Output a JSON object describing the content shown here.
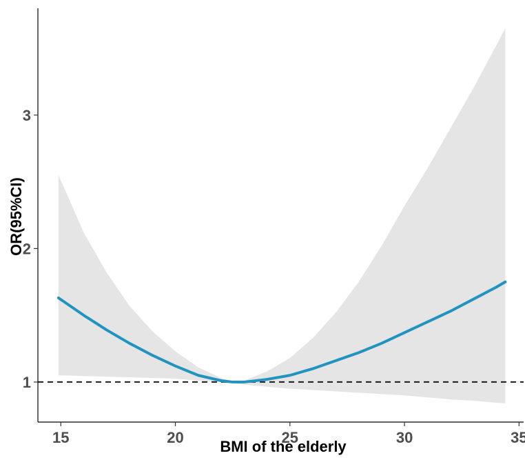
{
  "chart_data": {
    "type": "line",
    "title": "",
    "xlabel": "BMI of the elderly",
    "ylabel": "OR(95%CI)",
    "xlim": [
      14,
      35.2
    ],
    "ylim": [
      0.7,
      3.8
    ],
    "xticks": [
      15,
      20,
      25,
      30,
      35
    ],
    "yticks": [
      1,
      2,
      3
    ],
    "x_tick_labels": [
      "15",
      "20",
      "25",
      "30",
      "35"
    ],
    "y_tick_labels": [
      "1",
      "2",
      "3"
    ],
    "reference_line": {
      "y": 1,
      "style": "dashed",
      "color": "#1a1a1a"
    },
    "grid": false,
    "legend": "none",
    "series": [
      {
        "type": "line",
        "color": "#2193c0",
        "x": [
          14.9,
          16,
          17,
          18,
          19,
          20,
          21,
          22,
          22.5,
          23,
          24,
          25,
          26,
          27,
          28,
          29,
          30,
          31,
          32,
          33,
          34,
          34.4
        ],
        "values": [
          1.63,
          1.5,
          1.39,
          1.29,
          1.2,
          1.12,
          1.05,
          1.01,
          1.0,
          1.0,
          1.02,
          1.05,
          1.1,
          1.16,
          1.22,
          1.29,
          1.37,
          1.45,
          1.53,
          1.62,
          1.71,
          1.75
        ]
      },
      {
        "type": "confidence-band",
        "color": "#e5e5e5",
        "x": [
          14.9,
          16,
          17,
          18,
          19,
          20,
          21,
          22,
          22.5,
          23,
          24,
          25,
          26,
          27,
          28,
          29,
          30,
          31,
          32,
          33,
          34,
          34.4
        ],
        "lower": [
          1.05,
          1.045,
          1.04,
          1.035,
          1.03,
          1.025,
          1.01,
          1.0,
          0.99,
          0.98,
          0.965,
          0.95,
          0.94,
          0.93,
          0.92,
          0.91,
          0.9,
          0.885,
          0.87,
          0.86,
          0.845,
          0.84
        ],
        "upper": [
          2.55,
          2.12,
          1.82,
          1.57,
          1.38,
          1.23,
          1.11,
          1.03,
          1.0,
          1.01,
          1.08,
          1.18,
          1.33,
          1.52,
          1.75,
          2.02,
          2.32,
          2.6,
          2.9,
          3.2,
          3.52,
          3.65
        ]
      }
    ]
  }
}
